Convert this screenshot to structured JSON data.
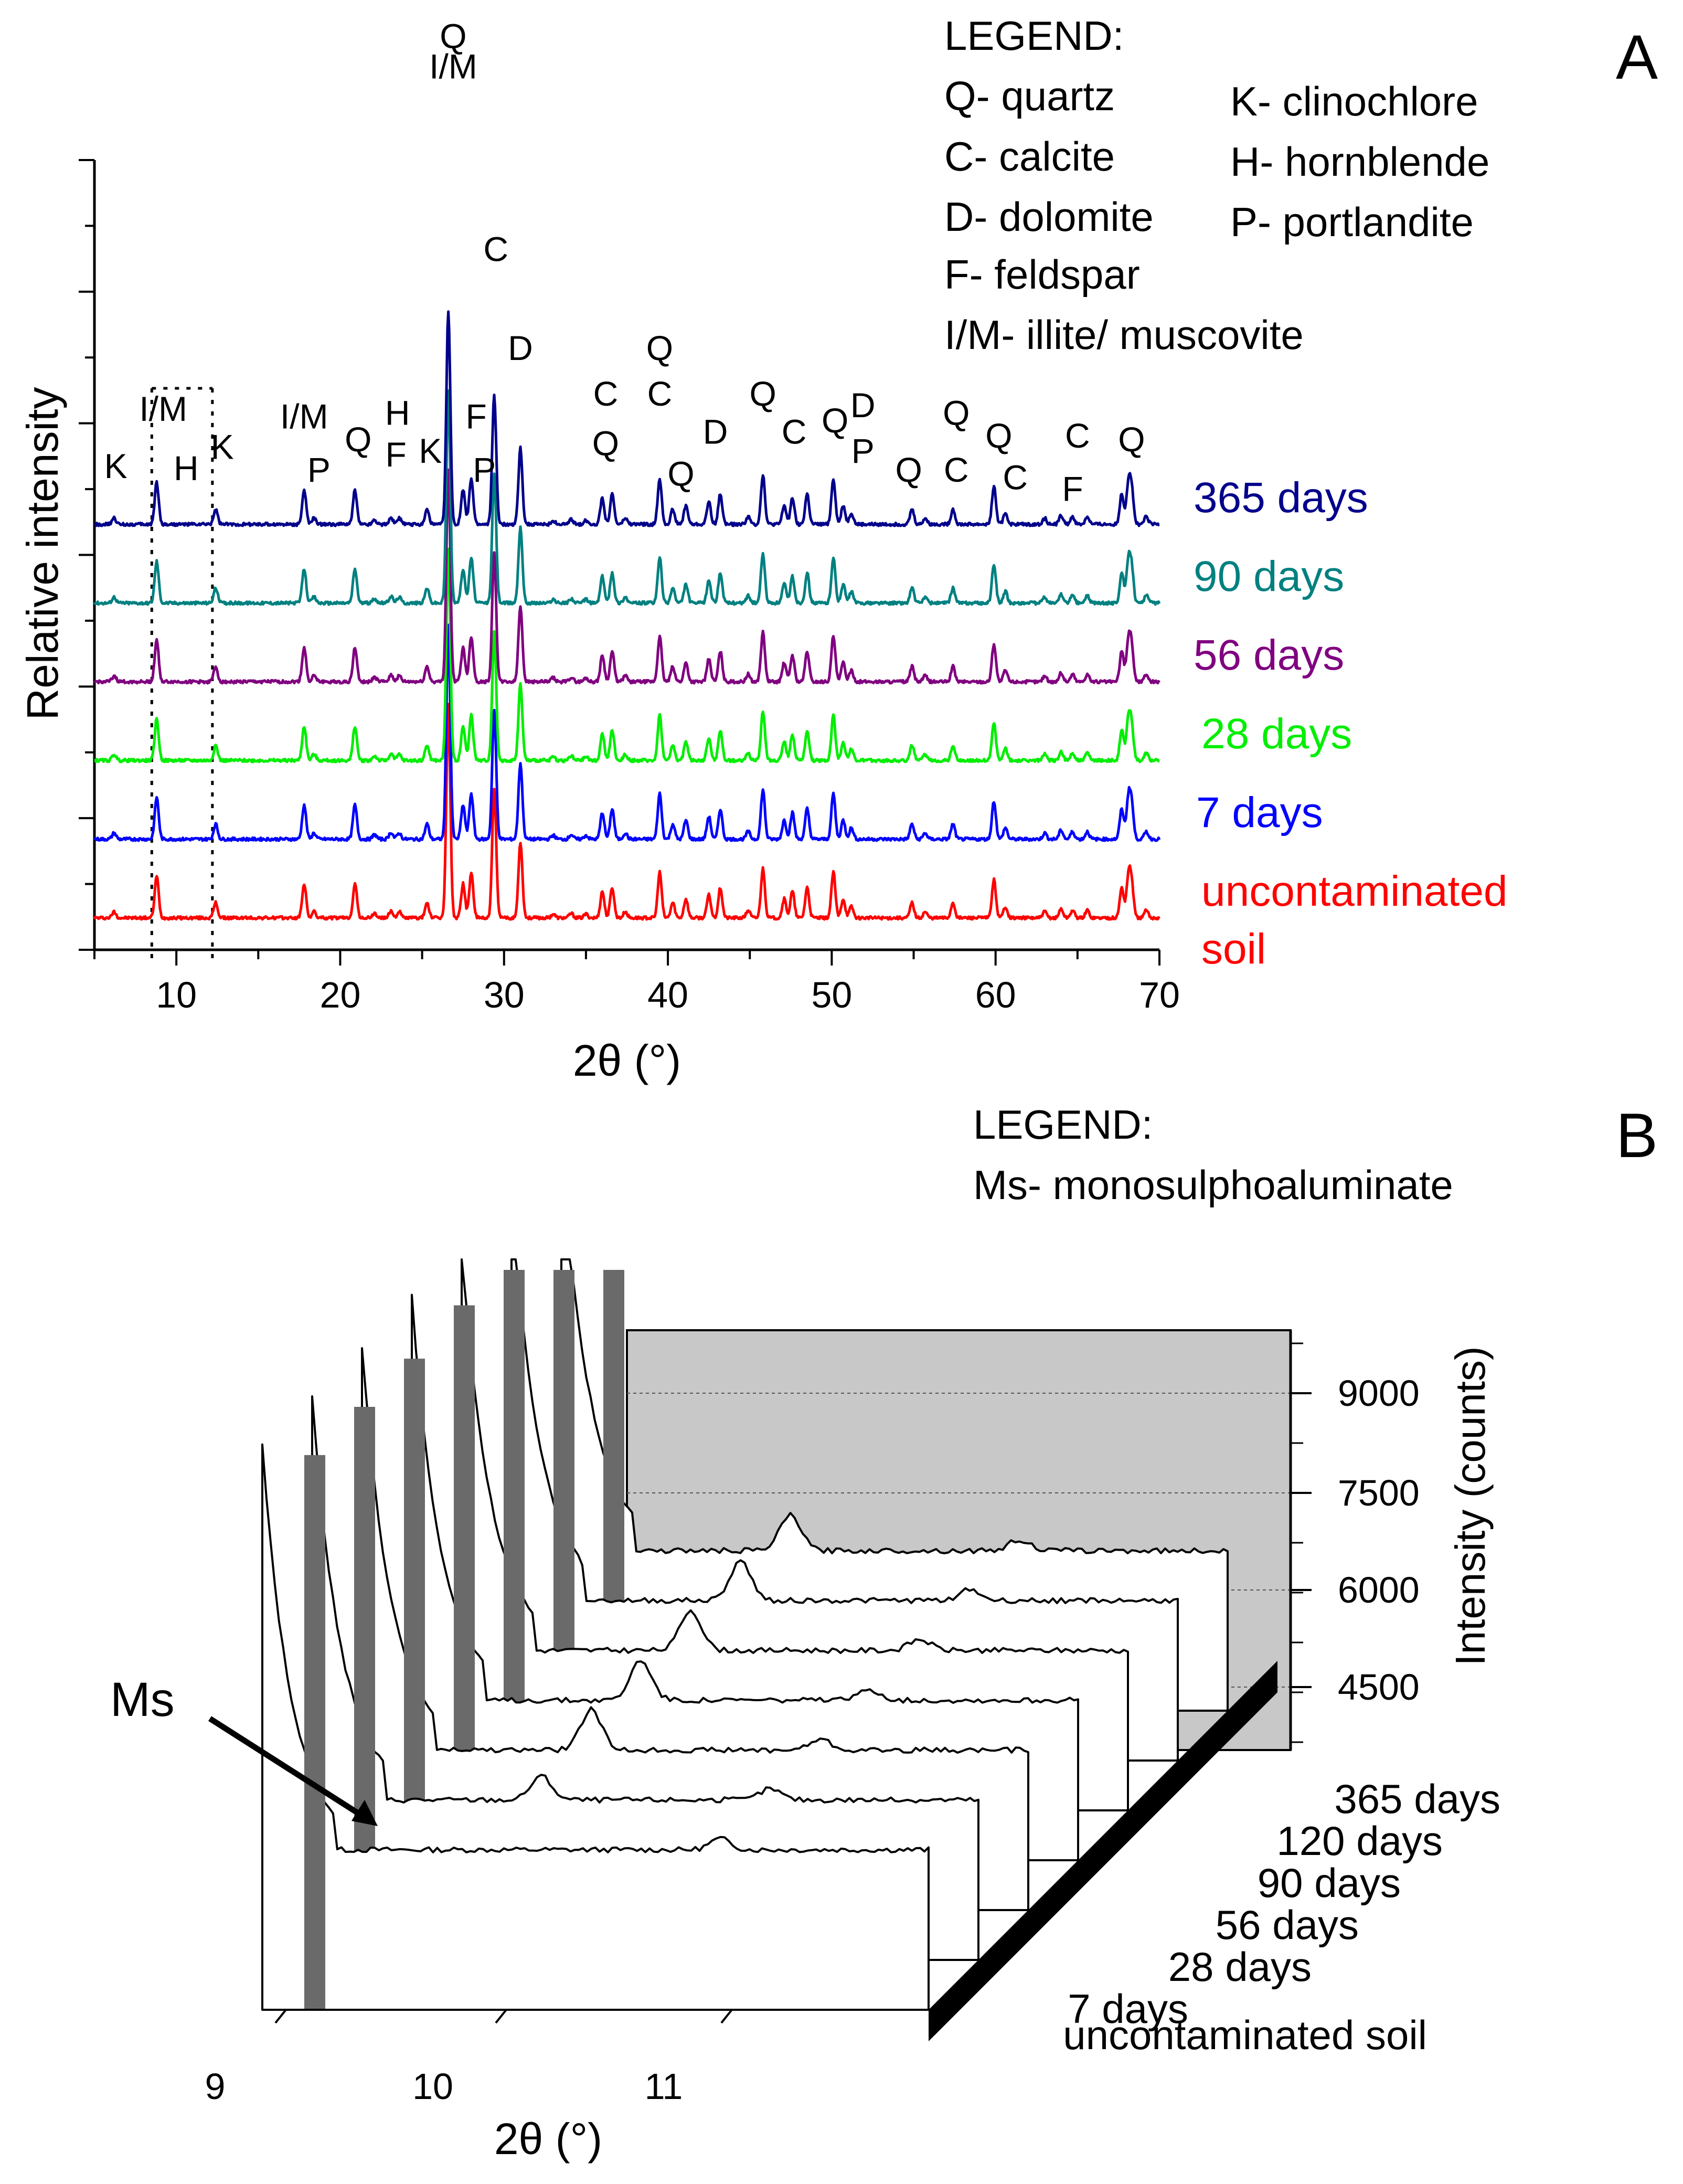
{
  "chart_data": [
    {
      "panel": "A",
      "type": "line",
      "xlabel": "2θ (°)",
      "ylabel": "Relative intensity",
      "xlim": [
        5,
        70
      ],
      "xticks": [
        10,
        20,
        30,
        40,
        50,
        60,
        70
      ],
      "dotted_lines_x": [
        8.5,
        12.2
      ],
      "legend_title": "LEGEND:",
      "legend_items": [
        "Q- quartz",
        "C- calcite",
        "D- dolomite",
        "F- feldspar",
        "I/M- illite/ muscovite",
        "K- clinochlore",
        "H- hornblende",
        "P- portlandite"
      ],
      "peaks": [
        {
          "x": 6.2,
          "h": 0.08
        },
        {
          "x": 8.8,
          "h": 0.55
        },
        {
          "x": 12.4,
          "h": 0.2
        },
        {
          "x": 17.8,
          "h": 0.45
        },
        {
          "x": 18.4,
          "h": 0.08
        },
        {
          "x": 20.9,
          "h": 0.45
        },
        {
          "x": 22.1,
          "h": 0.06
        },
        {
          "x": 23.1,
          "h": 0.09
        },
        {
          "x": 23.6,
          "h": 0.08
        },
        {
          "x": 25.3,
          "h": 0.2
        },
        {
          "x": 26.6,
          "h": 2.8
        },
        {
          "x": 27.5,
          "h": 0.45
        },
        {
          "x": 28.0,
          "h": 0.6
        },
        {
          "x": 29.4,
          "h": 1.7
        },
        {
          "x": 31.0,
          "h": 1.0
        },
        {
          "x": 33.0,
          "h": 0.05
        },
        {
          "x": 34.1,
          "h": 0.06
        },
        {
          "x": 35.0,
          "h": 0.05
        },
        {
          "x": 36.0,
          "h": 0.35
        },
        {
          "x": 36.6,
          "h": 0.4
        },
        {
          "x": 37.4,
          "h": 0.08
        },
        {
          "x": 39.5,
          "h": 0.6
        },
        {
          "x": 40.3,
          "h": 0.2
        },
        {
          "x": 41.1,
          "h": 0.25
        },
        {
          "x": 42.5,
          "h": 0.3
        },
        {
          "x": 43.2,
          "h": 0.4
        },
        {
          "x": 44.9,
          "h": 0.1
        },
        {
          "x": 45.8,
          "h": 0.65
        },
        {
          "x": 47.1,
          "h": 0.25
        },
        {
          "x": 47.6,
          "h": 0.35
        },
        {
          "x": 48.5,
          "h": 0.4
        },
        {
          "x": 50.1,
          "h": 0.6
        },
        {
          "x": 50.7,
          "h": 0.25
        },
        {
          "x": 51.2,
          "h": 0.15
        },
        {
          "x": 54.9,
          "h": 0.2
        },
        {
          "x": 55.7,
          "h": 0.08
        },
        {
          "x": 57.4,
          "h": 0.2
        },
        {
          "x": 59.9,
          "h": 0.5
        },
        {
          "x": 60.6,
          "h": 0.15
        },
        {
          "x": 63.0,
          "h": 0.08
        },
        {
          "x": 64.0,
          "h": 0.12
        },
        {
          "x": 64.7,
          "h": 0.1
        },
        {
          "x": 65.6,
          "h": 0.1
        },
        {
          "x": 67.7,
          "h": 0.4
        },
        {
          "x": 68.1,
          "h": 0.5
        },
        {
          "x": 68.3,
          "h": 0.45
        },
        {
          "x": 69.2,
          "h": 0.1
        }
      ],
      "series": [
        {
          "name": "uncontaminated soil",
          "label_lines": [
            "uncontaminated",
            "soil"
          ],
          "color": "#ff0000",
          "offset": 0
        },
        {
          "name": "7 days",
          "label_lines": [
            "7 days"
          ],
          "color": "#0000ff",
          "offset": 1
        },
        {
          "name": "28 days",
          "label_lines": [
            "28 days"
          ],
          "color": "#00ee00",
          "offset": 2
        },
        {
          "name": "56 days",
          "label_lines": [
            "56 days"
          ],
          "color": "#800080",
          "offset": 3
        },
        {
          "name": "90 days",
          "label_lines": [
            "90 days"
          ],
          "color": "#008080",
          "offset": 4
        },
        {
          "name": "365 days",
          "label_lines": [
            "365 days"
          ],
          "color": "#00008b",
          "offset": 5
        }
      ],
      "peak_labels": [
        {
          "text": "K",
          "x": 6.3,
          "level": 0.65
        },
        {
          "text": "I/M",
          "x": 9.2,
          "level": 1.4
        },
        {
          "text": "H",
          "x": 10.6,
          "level": 0.62
        },
        {
          "text": "K",
          "x": 12.8,
          "level": 0.9
        },
        {
          "text": "I/M",
          "x": 17.8,
          "level": 1.3
        },
        {
          "text": "P",
          "x": 18.7,
          "level": 0.6
        },
        {
          "text": "Q",
          "x": 21.1,
          "level": 1.0
        },
        {
          "text": "H",
          "x": 23.5,
          "level": 1.35
        },
        {
          "text": "F",
          "x": 23.4,
          "level": 0.8
        },
        {
          "text": "K",
          "x": 25.5,
          "level": 0.85
        },
        {
          "text": "Q",
          "x": 26.9,
          "level": 6.3
        },
        {
          "text": "I/M",
          "x": 26.9,
          "level": 5.9
        },
        {
          "text": "C",
          "x": 29.5,
          "level": 3.5
        },
        {
          "text": "D",
          "x": 31.0,
          "level": 2.2
        },
        {
          "text": "F",
          "x": 28.3,
          "level": 1.3
        },
        {
          "text": "P",
          "x": 28.8,
          "level": 0.6
        },
        {
          "text": "C",
          "x": 36.2,
          "level": 1.6
        },
        {
          "text": "Q",
          "x": 36.2,
          "level": 0.95
        },
        {
          "text": "Q",
          "x": 39.5,
          "level": 2.2
        },
        {
          "text": "C",
          "x": 39.5,
          "level": 1.6
        },
        {
          "text": "Q",
          "x": 40.8,
          "level": 0.55
        },
        {
          "text": "D",
          "x": 42.9,
          "level": 1.1
        },
        {
          "text": "Q",
          "x": 45.8,
          "level": 1.6
        },
        {
          "text": "C",
          "x": 47.7,
          "level": 1.1
        },
        {
          "text": "Q",
          "x": 50.2,
          "level": 1.25
        },
        {
          "text": "D",
          "x": 51.9,
          "level": 1.45
        },
        {
          "text": "P",
          "x": 51.9,
          "level": 0.85
        },
        {
          "text": "Q",
          "x": 54.7,
          "level": 0.6
        },
        {
          "text": "Q",
          "x": 57.6,
          "level": 1.35
        },
        {
          "text": "C",
          "x": 57.6,
          "level": 0.6
        },
        {
          "text": "Q",
          "x": 60.2,
          "level": 1.05
        },
        {
          "text": "C",
          "x": 61.2,
          "level": 0.5
        },
        {
          "text": "C",
          "x": 65.0,
          "level": 1.05
        },
        {
          "text": "F",
          "x": 64.7,
          "level": 0.35
        },
        {
          "text": "Q",
          "x": 68.3,
          "level": 1.0
        }
      ]
    },
    {
      "panel": "B",
      "type": "line",
      "projection": "3d-waterfall",
      "xlabel": "2θ (°)",
      "zlabel": "Intensity (counts)",
      "xlim": [
        8.8,
        12.0
      ],
      "xticks": [
        9,
        10,
        11
      ],
      "zlim": [
        3500,
        10000
      ],
      "zticks": [
        4500,
        6000,
        7500,
        9000
      ],
      "legend_title": "LEGEND:",
      "legend_items": [
        "Ms- monosulphoaluminate"
      ],
      "annotation": "Ms",
      "series": [
        {
          "name": "uncontaminated soil",
          "ms_peak": 0
        },
        {
          "name": "7 days",
          "ms_peak": 520
        },
        {
          "name": "28 days",
          "ms_peak": 880
        },
        {
          "name": "56 days",
          "ms_peak": 880
        },
        {
          "name": "90 days",
          "ms_peak": 880
        },
        {
          "name": "120 days",
          "ms_peak": 860
        },
        {
          "name": "365 days",
          "ms_peak": 780
        }
      ]
    }
  ],
  "panel_letters": [
    "A",
    "B"
  ]
}
